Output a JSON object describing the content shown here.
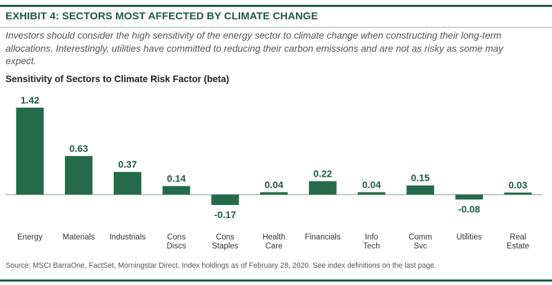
{
  "exhibit_title": "EXHIBIT 4: SECTORS MOST AFFECTED BY CLIMATE CHANGE",
  "subtitle": "Investors should consider the high sensitivity of the energy sector to climate change when constructing their long-term allocations. Interestingly, utilities have committed to reducing their carbon emissions and are not as risky as some may expect.",
  "source": "Source: MSCI BarraOne, FactSet, Morningstar Direct. Index holdings as of February 28, 2020. See index definitions on the last page.",
  "colors": {
    "bar": "#256b4b",
    "accent": "#1f5a40",
    "axis": "#7a9a8a"
  },
  "chart_data": {
    "type": "bar",
    "title": "Sensitivity of Sectors to Climate Risk Factor (beta)",
    "categories": [
      [
        "Energy"
      ],
      [
        "Materials"
      ],
      [
        "Industrials"
      ],
      [
        "Cons",
        "Discs"
      ],
      [
        "Cons",
        "Staples"
      ],
      [
        "Health",
        "Care"
      ],
      [
        "Financials"
      ],
      [
        "Info",
        "Tech"
      ],
      [
        "Comm",
        "Svc"
      ],
      [
        "Utilities"
      ],
      [
        "Real",
        "Estate"
      ]
    ],
    "values": [
      1.42,
      0.63,
      0.37,
      0.14,
      -0.17,
      0.04,
      0.22,
      0.04,
      0.15,
      -0.08,
      0.03
    ],
    "value_labels": [
      "1.42",
      "0.63",
      "0.37",
      "0.14",
      "-0.17",
      "0.04",
      "0.22",
      "0.04",
      "0.15",
      "-0.08",
      "0.03"
    ],
    "ylim": [
      -0.17,
      1.42
    ],
    "grid": false,
    "legend": "none"
  }
}
